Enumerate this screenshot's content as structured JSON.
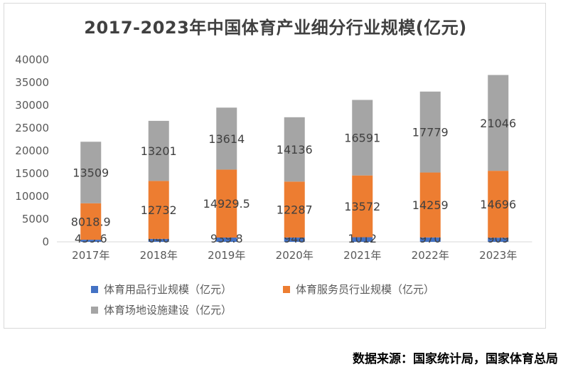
{
  "chart_data": {
    "type": "bar",
    "stacked": true,
    "title": "2017-2023年中国体育产业细分行业规模(亿元)",
    "categories": [
      "2017年",
      "2018年",
      "2019年",
      "2020年",
      "2021年",
      "2022年",
      "2023年"
    ],
    "series": [
      {
        "name": "体育用品行业规模（亿元）",
        "color": "#4472c4",
        "values": [
          459.6,
          646,
          939.8,
          948,
          1012,
          970,
          909
        ],
        "labels": [
          "459.6",
          "646",
          "939.8",
          "948",
          "1012",
          "970",
          "909"
        ]
      },
      {
        "name": "体育服务员行业规模（亿元）",
        "color": "#ed7d31",
        "values": [
          8018.9,
          12732,
          14929.5,
          12287,
          13572,
          14259,
          14696
        ],
        "labels": [
          "8018.9",
          "12732",
          "14929.5",
          "12287",
          "13572",
          "14259",
          "14696"
        ]
      },
      {
        "name": "体育场地设施建设（亿元）",
        "color": "#a5a5a5",
        "values": [
          13509,
          13201,
          13614,
          14136,
          16591,
          17779,
          21046
        ],
        "labels": [
          "13509",
          "13201",
          "13614",
          "14136",
          "16591",
          "17779",
          "21046"
        ]
      }
    ],
    "yticks": [
      "0",
      "5000",
      "10000",
      "15000",
      "20000",
      "25000",
      "30000",
      "35000",
      "40000"
    ],
    "ylim": [
      0,
      40000
    ],
    "legend_position": "bottom",
    "grid": false
  },
  "source": "数据来源：国家统计局，国家体育总局"
}
